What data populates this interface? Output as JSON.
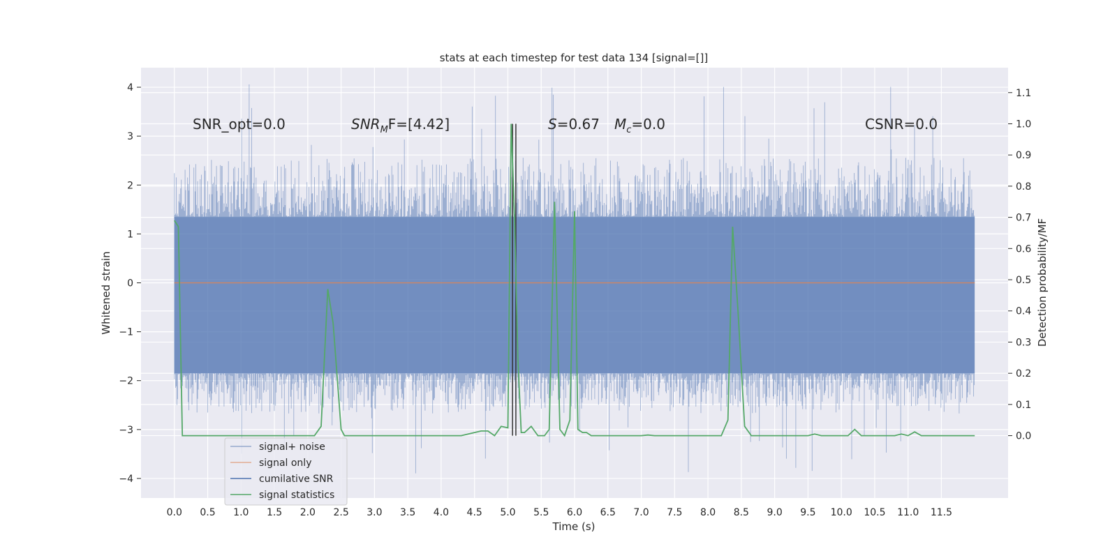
{
  "chart_data": {
    "type": "line",
    "title": "stats at each timestep for test data 134 [signal=[]]",
    "xlabel": "Time (s)",
    "ylabel_left": "Whitened strain",
    "ylabel_right": "Detection probability/MF",
    "xlim": [
      -0.5,
      12.5
    ],
    "ylim_left": [
      -4.4,
      4.4
    ],
    "ylim_right": [
      -0.2,
      1.18
    ],
    "x_ticks": [
      "0.0",
      "0.5",
      "1.0",
      "1.5",
      "2.0",
      "2.5",
      "3.0",
      "3.5",
      "4.0",
      "4.5",
      "5.0",
      "5.5",
      "6.0",
      "6.5",
      "7.0",
      "7.5",
      "8.0",
      "8.5",
      "9.0",
      "9.5",
      "10.0",
      "10.5",
      "11.0",
      "11.5"
    ],
    "y_left_ticks": [
      "−4",
      "−3",
      "−2",
      "−1",
      "0",
      "1",
      "2",
      "3",
      "4"
    ],
    "y_right_ticks": [
      "0.0",
      "0.1",
      "0.2",
      "0.3",
      "0.4",
      "0.5",
      "0.6",
      "0.7",
      "0.8",
      "0.9",
      "1.0",
      "1.1"
    ],
    "grid": true,
    "legend_position": "lower-left",
    "annotations": {
      "snr_opt": "SNR_opt=0.0",
      "snr_mf_main": "SNR",
      "snr_mf_sub": "M",
      "snr_mf_rest": "F=[4.42]",
      "s_italic": "S",
      "s_rest": "=0.67",
      "mc_main": "M",
      "mc_sub": "c",
      "mc_rest": "=0.0",
      "csnr": "CSNR=0.0"
    },
    "series": [
      {
        "name": "signal+ noise",
        "color": "#4c72b0",
        "axis": "left",
        "style": "noise band",
        "x_range": [
          0.0,
          12.0
        ],
        "dense_range": [
          -1.85,
          1.35
        ],
        "typical_peak_range": [
          -2.7,
          2.6
        ],
        "extreme_range": [
          -3.9,
          4.1
        ]
      },
      {
        "name": "signal only",
        "color": "#dd8452",
        "axis": "left",
        "x": [
          0.0,
          12.0
        ],
        "values": [
          0.0,
          0.0
        ]
      },
      {
        "name": "cumilative SNR",
        "color": "#4c72b0",
        "axis": "left",
        "x": [],
        "values": []
      },
      {
        "name": "signal statistics",
        "color": "#55a868",
        "axis": "right",
        "x": [
          0.0,
          0.06,
          0.12,
          0.5,
          1.0,
          1.5,
          2.0,
          2.1,
          2.2,
          2.3,
          2.38,
          2.5,
          2.55,
          2.6,
          3.0,
          4.0,
          4.3,
          4.5,
          4.6,
          4.7,
          4.8,
          4.9,
          5.0,
          5.05,
          5.1,
          5.15,
          5.2,
          5.25,
          5.35,
          5.45,
          5.55,
          5.62,
          5.7,
          5.78,
          5.85,
          5.93,
          6.0,
          6.05,
          6.12,
          6.18,
          6.25,
          6.5,
          7.0,
          7.1,
          7.2,
          8.0,
          8.1,
          8.2,
          8.3,
          8.37,
          8.45,
          8.55,
          8.65,
          9.0,
          9.5,
          9.6,
          9.7,
          10.0,
          10.1,
          10.2,
          10.3,
          10.5,
          10.8,
          10.9,
          11.0,
          11.1,
          11.2,
          11.4,
          11.5,
          12.0
        ],
        "values": [
          0.69,
          0.67,
          0.0,
          0.0,
          0.0,
          0.0,
          0.0,
          0.0,
          0.03,
          0.47,
          0.36,
          0.02,
          0.0,
          0.0,
          0.0,
          0.0,
          0.0,
          0.01,
          0.015,
          0.015,
          0.0,
          0.03,
          0.025,
          1.0,
          0.7,
          0.25,
          0.01,
          0.01,
          0.03,
          0.0,
          0.0,
          0.02,
          0.75,
          0.02,
          0.0,
          0.05,
          0.72,
          0.02,
          0.01,
          0.01,
          0.0,
          0.0,
          0.0,
          0.002,
          0.0,
          0.0,
          0.0,
          0.0,
          0.05,
          0.67,
          0.4,
          0.03,
          0.0,
          0.0,
          0.0,
          0.005,
          0.0,
          0.0,
          0.0,
          0.02,
          0.0,
          0.0,
          0.0,
          0.005,
          0.0,
          0.012,
          0.0,
          0.0,
          0.0,
          0.0
        ]
      }
    ],
    "vertical_lines": [
      {
        "x": 5.07,
        "color": "#333333"
      },
      {
        "x": 5.12,
        "color": "#333333"
      }
    ]
  }
}
